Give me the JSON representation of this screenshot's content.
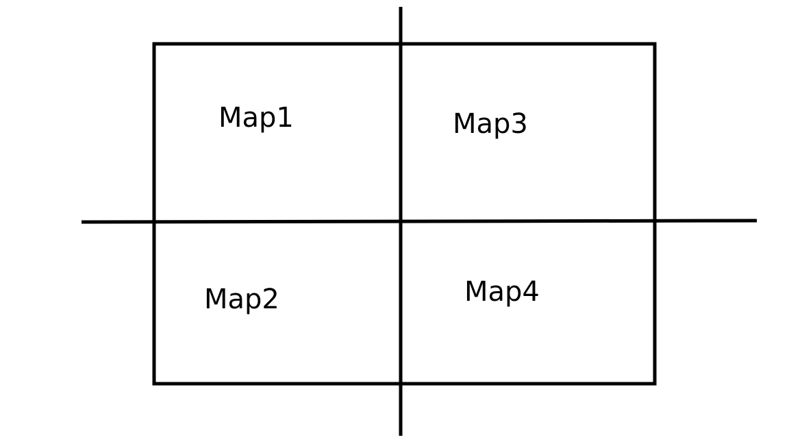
{
  "diagram": {
    "quadrants": [
      {
        "id": "map1",
        "label": "Map1"
      },
      {
        "id": "map2",
        "label": "Map2"
      },
      {
        "id": "map3",
        "label": "Map3"
      },
      {
        "id": "map4",
        "label": "Map4"
      }
    ]
  },
  "colors": {
    "line": "#000000",
    "background": "#ffffff",
    "text": "#000000"
  }
}
